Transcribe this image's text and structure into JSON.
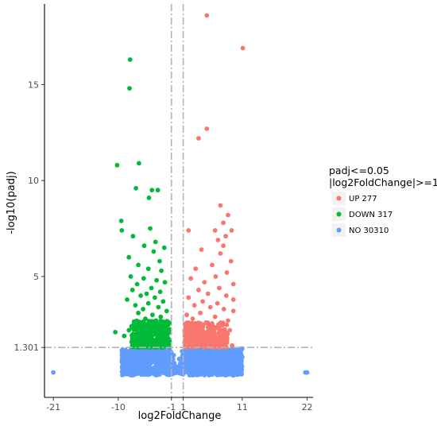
{
  "chart_data": {
    "type": "scatter",
    "title": "",
    "xlabel": "log2FoldChange",
    "ylabel": "-log10(padj)",
    "xlim": [
      -22.5,
      23
    ],
    "ylim": [
      -1.3,
      19.2
    ],
    "x_ticks": [
      -21,
      -10,
      -1,
      1,
      11,
      22
    ],
    "x_tick_labels": [
      "-21",
      "-10",
      "-1",
      "1",
      "11",
      "22"
    ],
    "y_ticks": [
      1.301,
      5,
      10,
      15
    ],
    "y_tick_labels": [
      "1.301",
      "5",
      "10",
      "15"
    ],
    "vlines": [
      -1,
      1
    ],
    "hline": 1.301,
    "grid": false,
    "legend": {
      "title_lines": [
        "padj<=0.05",
        "|log2FoldChange|>=1"
      ],
      "position": "right",
      "entries": [
        {
          "label": "UP 277",
          "color": "#F8766D"
        },
        {
          "label": "DOWN 317",
          "color": "#00BA38"
        },
        {
          "label": "NO 30310",
          "color": "#619CFF"
        }
      ]
    },
    "series": [
      {
        "name": "UP 277",
        "color": "#F8766D",
        "points": [
          [
            5.0,
            18.6
          ],
          [
            11.1,
            16.9
          ],
          [
            5.0,
            12.7
          ],
          [
            3.6,
            12.2
          ],
          [
            7.3,
            8.7
          ],
          [
            8.6,
            8.2
          ],
          [
            7.8,
            7.8
          ],
          [
            1.9,
            7.4
          ],
          [
            6.4,
            7.4
          ],
          [
            9.2,
            7.4
          ],
          [
            8.2,
            7.1
          ],
          [
            6.9,
            6.9
          ],
          [
            7.8,
            6.6
          ],
          [
            4.1,
            6.4
          ],
          [
            7.3,
            6.2
          ],
          [
            9.1,
            5.8
          ],
          [
            5.9,
            5.6
          ],
          [
            3.1,
            5.4
          ],
          [
            8.4,
            5.2
          ],
          [
            6.5,
            5.0
          ],
          [
            2.3,
            4.9
          ],
          [
            4.6,
            4.7
          ],
          [
            9.5,
            4.6
          ],
          [
            7.1,
            4.4
          ],
          [
            3.6,
            4.3
          ],
          [
            5.2,
            4.1
          ],
          [
            8.3,
            4.0
          ],
          [
            1.9,
            3.9
          ],
          [
            9.5,
            3.8
          ],
          [
            4.3,
            3.7
          ],
          [
            6.8,
            3.6
          ],
          [
            2.9,
            3.5
          ],
          [
            5.6,
            3.4
          ],
          [
            7.9,
            3.3
          ],
          [
            9.5,
            3.2
          ],
          [
            3.9,
            3.1
          ],
          [
            1.6,
            3.0
          ],
          [
            6.4,
            2.9
          ],
          [
            2.6,
            2.8
          ],
          [
            8.6,
            2.7
          ],
          [
            4.9,
            2.6
          ],
          [
            3.4,
            2.5
          ],
          [
            7.5,
            2.5
          ],
          [
            1.4,
            2.4
          ],
          [
            5.7,
            2.3
          ],
          [
            2.2,
            2.2
          ],
          [
            8.9,
            2.2
          ],
          [
            4.0,
            2.1
          ],
          [
            6.2,
            2.0
          ],
          [
            1.8,
            1.9
          ],
          [
            3.1,
            1.9
          ],
          [
            7.2,
            1.8
          ],
          [
            4.6,
            1.8
          ],
          [
            2.5,
            1.7
          ],
          [
            5.3,
            1.7
          ],
          [
            8.0,
            1.6
          ],
          [
            1.3,
            1.6
          ],
          [
            3.7,
            1.5
          ],
          [
            6.7,
            1.5
          ],
          [
            2.1,
            1.45
          ],
          [
            4.9,
            1.4
          ],
          [
            9.3,
            1.4
          ]
        ]
      },
      {
        "name": "DOWN 317",
        "color": "#00BA38",
        "points": [
          [
            -8.0,
            16.3
          ],
          [
            -8.1,
            14.8
          ],
          [
            -10.2,
            10.8
          ],
          [
            -6.5,
            10.9
          ],
          [
            -7.0,
            9.6
          ],
          [
            -3.3,
            9.5
          ],
          [
            -4.3,
            9.5
          ],
          [
            -4.8,
            9.1
          ],
          [
            -9.5,
            7.9
          ],
          [
            -4.6,
            7.5
          ],
          [
            -9.4,
            7.4
          ],
          [
            -7.5,
            7.1
          ],
          [
            -3.7,
            6.8
          ],
          [
            -5.6,
            6.6
          ],
          [
            -2.2,
            6.5
          ],
          [
            -4.0,
            6.3
          ],
          [
            -8.2,
            6.0
          ],
          [
            -3.0,
            5.8
          ],
          [
            -6.6,
            5.6
          ],
          [
            -4.9,
            5.4
          ],
          [
            -2.7,
            5.3
          ],
          [
            -7.9,
            5.0
          ],
          [
            -5.7,
            4.9
          ],
          [
            -3.5,
            4.8
          ],
          [
            -2.1,
            4.7
          ],
          [
            -6.8,
            4.6
          ],
          [
            -4.4,
            4.4
          ],
          [
            -7.6,
            4.3
          ],
          [
            -2.9,
            4.2
          ],
          [
            -5.2,
            4.1
          ],
          [
            -6.2,
            4.0
          ],
          [
            -3.8,
            3.9
          ],
          [
            -8.5,
            3.8
          ],
          [
            -2.4,
            3.7
          ],
          [
            -4.9,
            3.6
          ],
          [
            -7.1,
            3.5
          ],
          [
            -3.2,
            3.4
          ],
          [
            -5.8,
            3.3
          ],
          [
            -1.8,
            3.2
          ],
          [
            -6.6,
            3.1
          ],
          [
            -4.2,
            3.0
          ],
          [
            -10.5,
            2.1
          ],
          [
            -9.0,
            1.9
          ],
          [
            -2.8,
            2.9
          ],
          [
            -5.4,
            2.8
          ],
          [
            -3.6,
            2.7
          ],
          [
            -7.3,
            2.6
          ],
          [
            -1.6,
            2.6
          ],
          [
            -4.7,
            2.5
          ],
          [
            -2.3,
            2.4
          ],
          [
            -6.1,
            2.3
          ],
          [
            -3.9,
            2.2
          ],
          [
            -8.2,
            2.2
          ],
          [
            -1.4,
            2.1
          ],
          [
            -5.0,
            2.0
          ],
          [
            -2.6,
            1.9
          ],
          [
            -6.9,
            1.9
          ],
          [
            -3.4,
            1.8
          ],
          [
            -4.5,
            1.75
          ],
          [
            -1.9,
            1.7
          ],
          [
            -5.7,
            1.6
          ],
          [
            -2.9,
            1.55
          ],
          [
            -7.6,
            1.5
          ],
          [
            -4.0,
            1.5
          ],
          [
            -1.5,
            1.45
          ],
          [
            -3.1,
            1.4
          ],
          [
            -6.3,
            1.4
          ],
          [
            -2.2,
            1.35
          ]
        ]
      },
      {
        "name": "NO 30310",
        "color": "#619CFF",
        "points": [
          [
            -21,
            0
          ],
          [
            21.7,
            0
          ],
          [
            22.0,
            0
          ],
          [
            -8.8,
            0.4
          ],
          [
            -7.9,
            0.9
          ],
          [
            -7.0,
            0.3
          ],
          [
            -6.1,
            1.1
          ],
          [
            -5.2,
            0.6
          ],
          [
            -4.3,
            1.0
          ],
          [
            -3.4,
            0.2
          ],
          [
            -2.5,
            0.8
          ],
          [
            -1.8,
            1.2
          ],
          [
            -1.2,
            0.5
          ],
          [
            -0.6,
            0.9
          ],
          [
            -0.2,
            0.3
          ],
          [
            0.3,
            0.7
          ],
          [
            0.8,
            1.1
          ],
          [
            1.4,
            0.4
          ],
          [
            2.1,
            1.0
          ],
          [
            2.9,
            0.6
          ],
          [
            3.8,
            1.2
          ],
          [
            4.7,
            0.3
          ],
          [
            5.6,
            0.9
          ],
          [
            6.5,
            0.5
          ],
          [
            7.4,
            1.1
          ],
          [
            8.3,
            0.7
          ],
          [
            9.2,
            0.4
          ],
          [
            10.3,
            1.0
          ],
          [
            11.0,
            0.8
          ],
          [
            -8.5,
            0.1
          ],
          [
            -6.7,
            0.7
          ],
          [
            -4.8,
            0.4
          ],
          [
            -3.0,
            1.1
          ],
          [
            -1.5,
            0.2
          ],
          [
            1.6,
            0.9
          ],
          [
            3.2,
            0.2
          ],
          [
            5.0,
            1.0
          ],
          [
            6.9,
            0.2
          ],
          [
            8.8,
            1.0
          ]
        ]
      }
    ],
    "clouds": [
      {
        "series": "NO 30310",
        "color": "#619CFF",
        "x_range": [
          -9.4,
          11.0
        ],
        "y_range": [
          -0.15,
          1.25
        ]
      },
      {
        "series": "DOWN 317",
        "color": "#00BA38",
        "x_range": [
          -7.8,
          -1.2
        ],
        "y_range": [
          1.3,
          2.7
        ]
      },
      {
        "series": "UP 277",
        "color": "#F8766D",
        "x_range": [
          1.2,
          8.5
        ],
        "y_range": [
          1.3,
          2.6
        ]
      }
    ]
  }
}
